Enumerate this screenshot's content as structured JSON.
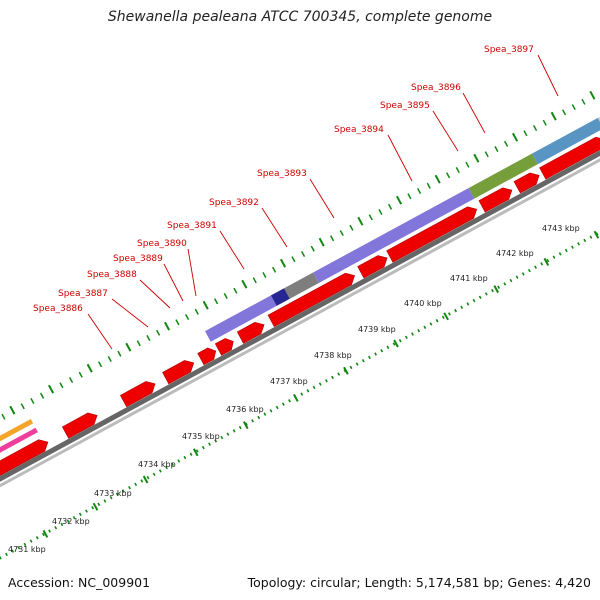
{
  "title": "Shewanella pealeana ATCC 700345, complete genome",
  "footer": {
    "accession": "Accession: NC_009901",
    "summary": "Topology: circular; Length: 5,174,581 bp; Genes: 4,420"
  },
  "colors": {
    "cds": "#ee0000",
    "backbone": "#888888",
    "ticks": "#118811",
    "label": "#cc0000",
    "cog_orange": "#f5a020",
    "cog_pink": "#ee3399",
    "cog_blue_violet": "#7b6fd9",
    "cog_dark_blue": "#1a1a8c",
    "cog_gray": "#777777",
    "cog_olive": "#6f9930",
    "cog_steel_blue": "#4f8fc0",
    "cog_light_gray": "#c8c8c8"
  },
  "gene_labels": [
    "Spea_3886",
    "Spea_3887",
    "Spea_3888",
    "Spea_3889",
    "Spea_3890",
    "Spea_3891",
    "Spea_3892",
    "Spea_3893",
    "Spea_3894",
    "Spea_3895",
    "Spea_3896",
    "Spea_3897"
  ],
  "kbp_labels": [
    "4731 kbp",
    "4732 kbp",
    "4733 kbp",
    "4734 kbp",
    "4735 kbp",
    "4736 kbp",
    "4737 kbp",
    "4738 kbp",
    "4739 kbp",
    "4740 kbp",
    "4741 kbp",
    "4742 kbp",
    "4743 kbp"
  ]
}
